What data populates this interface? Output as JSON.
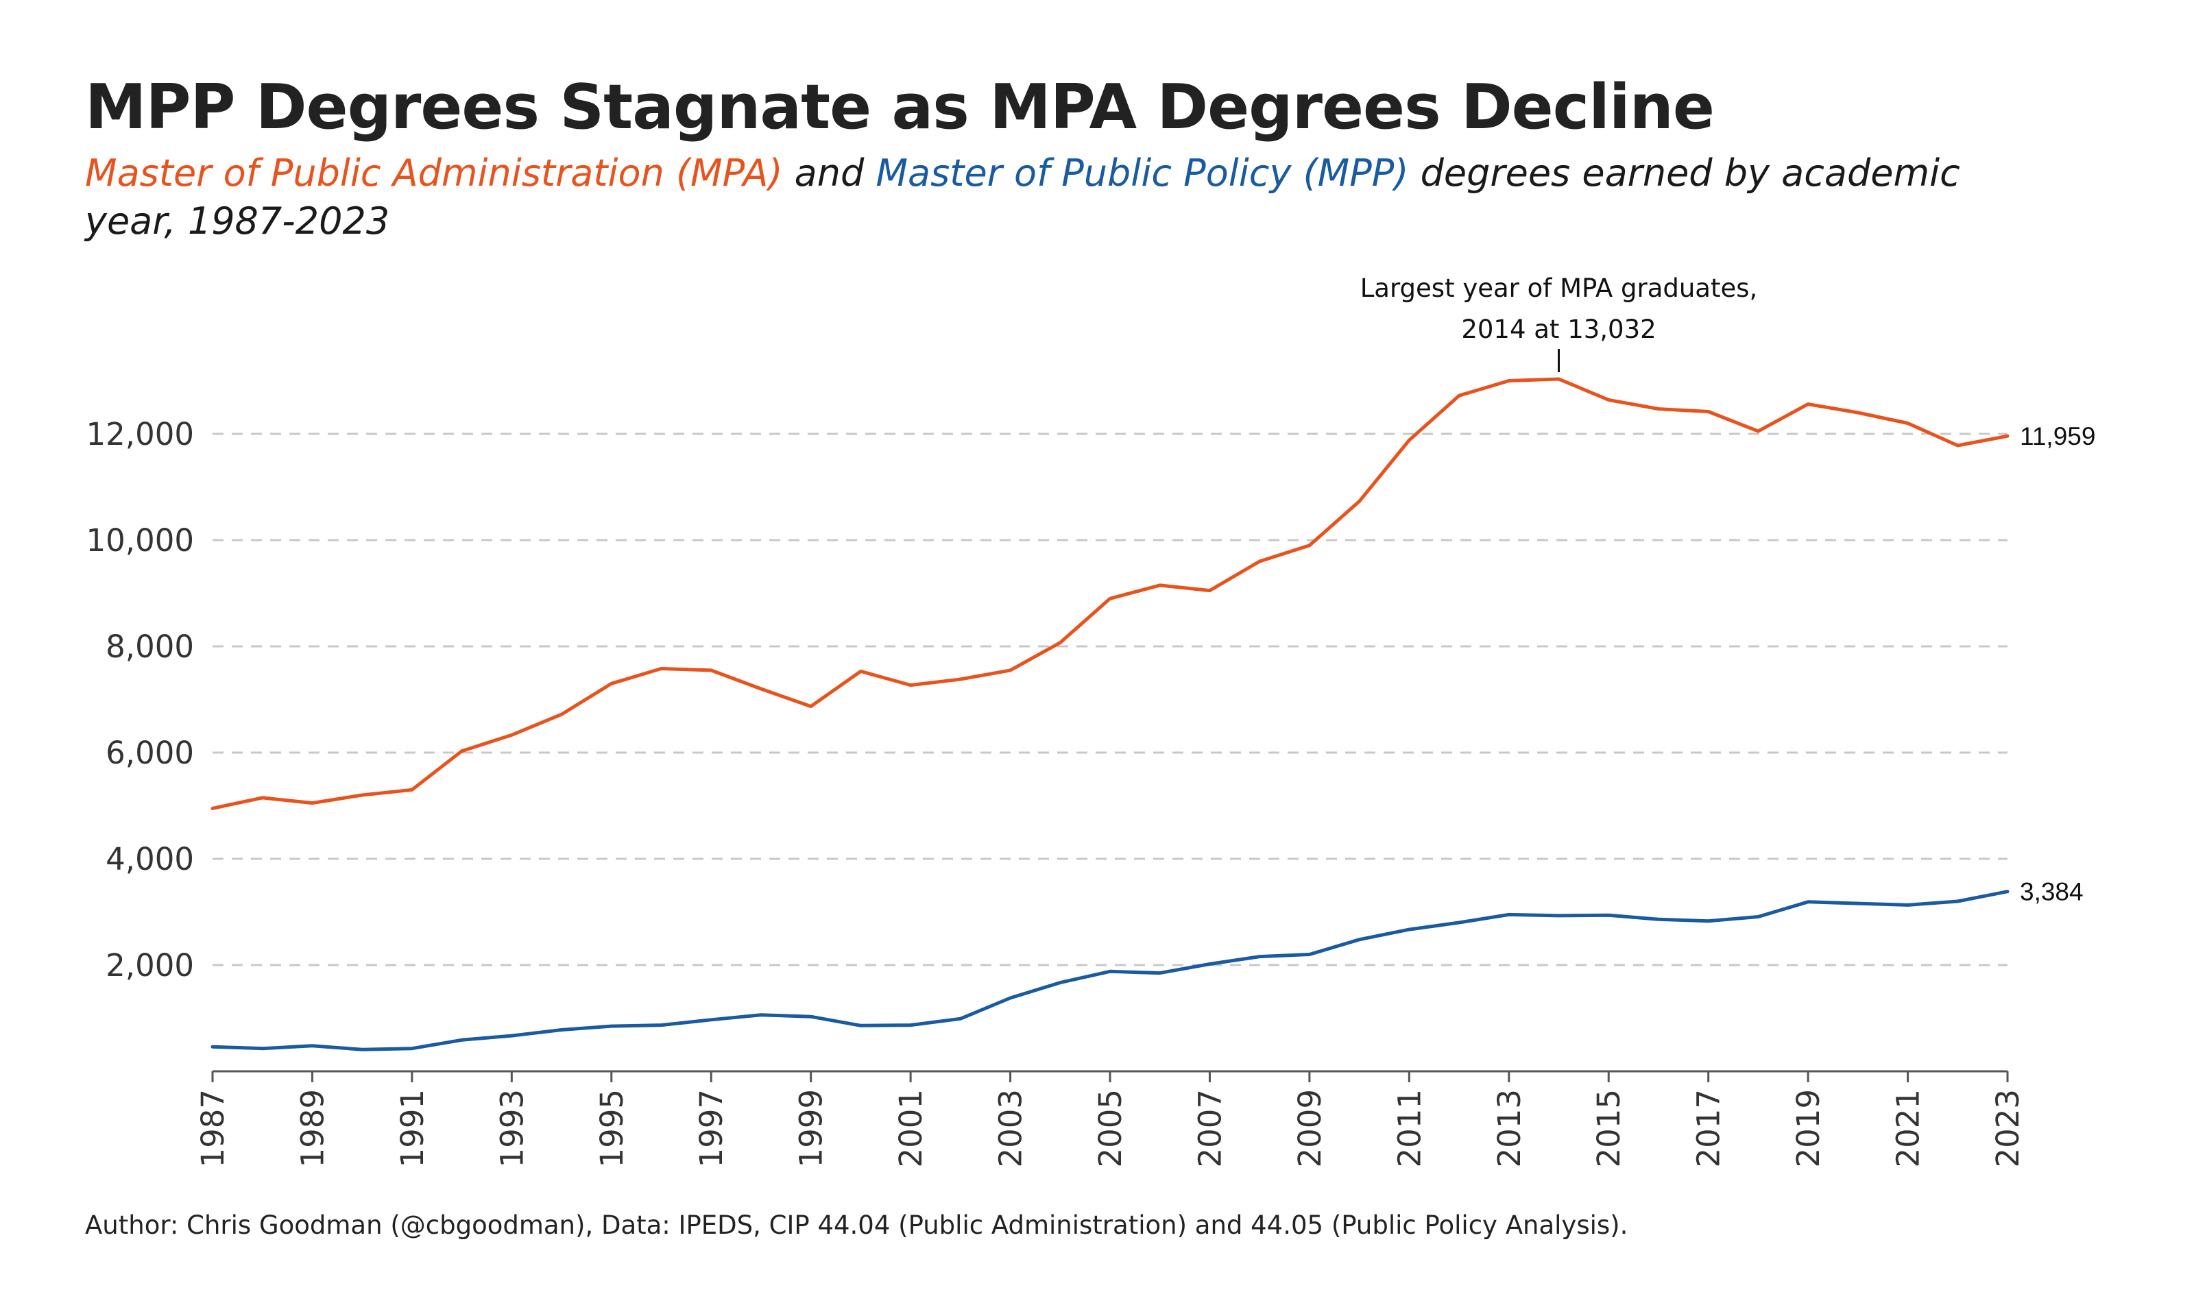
{
  "title": "MPP Degrees Stagnate as MPA Degrees Decline",
  "subtitle": {
    "mpa_text": "Master of Public Administration (MPA)",
    "and_text": " and ",
    "mpp_text": "Master of Public Policy (MPP)",
    "rest_text": " degrees earned by academic year, 1987-2023"
  },
  "caption": "Author: Chris Goodman (@cbgoodman), Data: IPEDS, CIP 44.04 (Public Administration) and 44.05 (Public Policy Analysis).",
  "colors": {
    "mpa": "#e8531d",
    "mpp": "#1a5aa0",
    "grid": "#c8c8c8",
    "axis": "#555555"
  },
  "chart_data": {
    "type": "line",
    "x": [
      1987,
      1988,
      1989,
      1990,
      1991,
      1992,
      1993,
      1994,
      1995,
      1996,
      1997,
      1998,
      1999,
      2000,
      2001,
      2002,
      2003,
      2004,
      2005,
      2006,
      2007,
      2008,
      2009,
      2010,
      2011,
      2012,
      2013,
      2014,
      2015,
      2016,
      2017,
      2018,
      2019,
      2020,
      2021,
      2022,
      2023
    ],
    "series": [
      {
        "key": "mpa",
        "values": [
          4950,
          5150,
          5050,
          5200,
          5300,
          6030,
          6330,
          6720,
          7300,
          7580,
          7550,
          7200,
          6870,
          7530,
          7270,
          7380,
          7550,
          8070,
          8900,
          9150,
          9050,
          9600,
          9900,
          10730,
          11880,
          12720,
          13000,
          13032,
          12640,
          12470,
          12420,
          12050,
          12560,
          12400,
          12200,
          11780,
          11959
        ]
      },
      {
        "key": "mpp",
        "values": [
          460,
          430,
          480,
          410,
          430,
          590,
          670,
          780,
          850,
          870,
          970,
          1060,
          1030,
          860,
          870,
          990,
          1380,
          1670,
          1880,
          1850,
          2020,
          2160,
          2200,
          2480,
          2670,
          2800,
          2950,
          2930,
          2940,
          2860,
          2830,
          2910,
          3190,
          3160,
          3130,
          3200,
          3384
        ]
      }
    ],
    "end_labels": {
      "mpa": "11,959",
      "mpp": "3,384"
    },
    "annotation": {
      "line1": "Largest year of MPA graduates,",
      "line2": "2014 at 13,032",
      "year": 2014,
      "value": 13032
    },
    "y_ticks": [
      2000,
      4000,
      6000,
      8000,
      10000,
      12000
    ],
    "y_tick_labels": [
      "2,000",
      "4,000",
      "6,000",
      "8,000",
      "10,000",
      "12,000"
    ],
    "x_ticks": [
      1987,
      1989,
      1991,
      1993,
      1995,
      1997,
      1999,
      2001,
      2003,
      2005,
      2007,
      2009,
      2011,
      2013,
      2015,
      2017,
      2019,
      2021,
      2023
    ],
    "xlim": [
      1987,
      2023
    ],
    "ylim": [
      0,
      14000
    ],
    "grid": "horizontal dashed"
  }
}
